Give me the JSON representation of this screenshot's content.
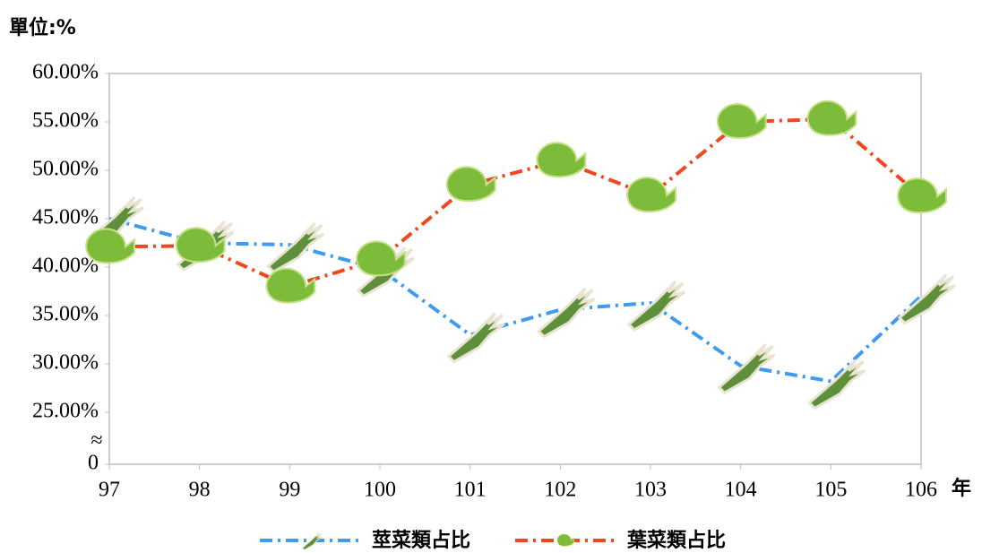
{
  "chart_data": {
    "type": "line",
    "unit_label": "單位:%",
    "x_unit_label": "年",
    "categories": [
      "97",
      "98",
      "99",
      "100",
      "101",
      "102",
      "103",
      "104",
      "105",
      "106"
    ],
    "series": [
      {
        "name": "莖菜類占比",
        "color": "#3d9bf2",
        "marker": "leek",
        "values": [
          45.0,
          42.5,
          42.3,
          39.8,
          33.0,
          35.6,
          36.3,
          29.8,
          28.2,
          37.0
        ]
      },
      {
        "name": "葉菜類占比",
        "color": "#f2461e",
        "marker": "cabbage",
        "values": [
          42.1,
          42.2,
          38.0,
          40.8,
          48.5,
          51.0,
          47.4,
          55.0,
          55.3,
          47.3
        ]
      }
    ],
    "ylim": [
      0,
      60
    ],
    "y_break": [
      0,
      25
    ],
    "y_break_mark": "≈",
    "yticks": [
      {
        "value": 0,
        "label": "0"
      },
      {
        "value": 25,
        "label": "25.00%"
      },
      {
        "value": 30,
        "label": "30.00%"
      },
      {
        "value": 35,
        "label": "35.00%"
      },
      {
        "value": 40,
        "label": "40.00%"
      },
      {
        "value": 45,
        "label": "45.00%"
      },
      {
        "value": 50,
        "label": "50.00%"
      },
      {
        "value": 55,
        "label": "55.00%"
      },
      {
        "value": 60,
        "label": "60.00%"
      }
    ],
    "grid": false
  }
}
